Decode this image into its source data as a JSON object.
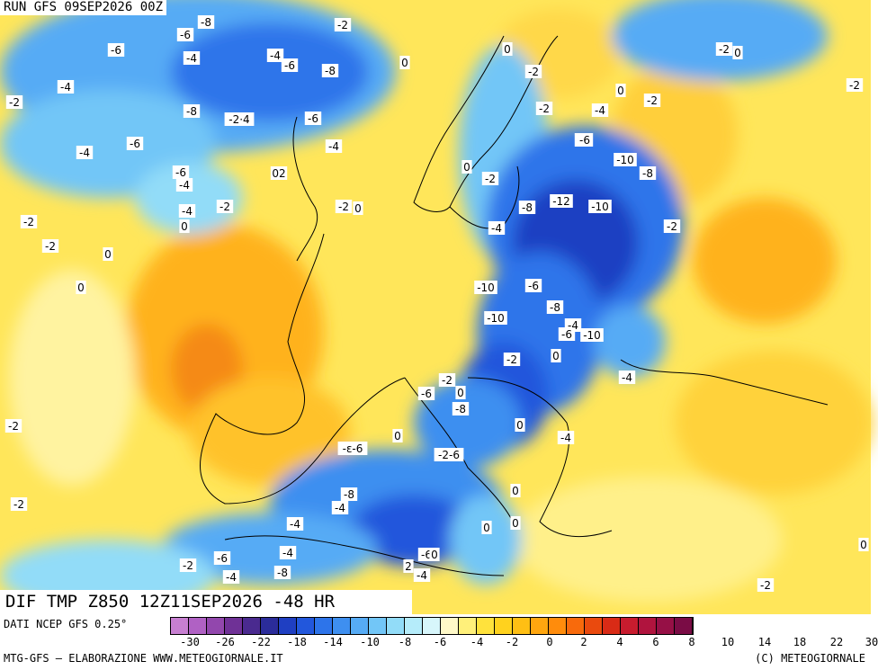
{
  "run_label": "RUN GFS 09SEP2026 00Z",
  "field_label": "DIF TMP Z850 12Z11SEP2026 -48 HR",
  "footer": {
    "source": "DATI NCEP GFS 0.25°",
    "credit": "MTG-GFS – ELABORAZIONE WWW.METEOGIORNALE.IT",
    "copyright": "(C) METEOGIORNALE"
  },
  "colors": {
    "scale": [
      "#c77fd1",
      "#b061c4",
      "#9247ad",
      "#6f3196",
      "#4a2a8f",
      "#2b2c9a",
      "#1f3fc2",
      "#2257dc",
      "#2d74ea",
      "#3e8ff0",
      "#56abf5",
      "#72c6f7",
      "#92dcf8",
      "#b5ecfa",
      "#d7f6fb",
      "#fff9c8",
      "#fff07a",
      "#ffe23c",
      "#ffd21e",
      "#ffbf14",
      "#ffa60f",
      "#ff8c0c",
      "#f86a0c",
      "#ea4a0e",
      "#d92b16",
      "#c81c2e",
      "#b0143e",
      "#961046",
      "#7a0c45"
    ],
    "cold_deep": "#2b4fd8",
    "cold": "#3e8ff0",
    "cool": "#8fd6f7",
    "neutral": "#fff7b0",
    "warm": "#ffd83c",
    "hot": "#ffb21c",
    "coast": "#000000"
  },
  "scale_ticks": [
    "-30",
    "-26",
    "-22",
    "-18",
    "-14",
    "-10",
    "-8",
    "-6",
    "-4",
    "-2",
    "0",
    "2",
    "4",
    "6",
    "8",
    "10",
    "14",
    "18",
    "22",
    "30"
  ],
  "contour_labels": [
    {
      "text": "-8"
    },
    {
      "text": "-6"
    },
    {
      "text": "-6"
    },
    {
      "text": "-4"
    },
    {
      "text": "-4"
    },
    {
      "text": "-6"
    },
    {
      "text": "-8"
    },
    {
      "text": "-4"
    },
    {
      "text": "-2"
    },
    {
      "text": "-8"
    },
    {
      "text": "-2·4"
    },
    {
      "text": "-6"
    },
    {
      "text": "-6"
    },
    {
      "text": "-4"
    },
    {
      "text": "-4"
    },
    {
      "text": "-6"
    },
    {
      "text": "-4"
    },
    {
      "text": "02"
    },
    {
      "text": "-2"
    },
    {
      "text": "0"
    },
    {
      "text": "-2"
    },
    {
      "text": "-2"
    },
    {
      "text": "0"
    },
    {
      "text": "0"
    },
    {
      "text": "0"
    },
    {
      "text": "0"
    },
    {
      "text": "0"
    },
    {
      "text": "-2"
    },
    {
      "text": "0"
    },
    {
      "text": "-6"
    },
    {
      "text": "-2"
    },
    {
      "text": "-4"
    },
    {
      "text": "-2"
    },
    {
      "text": "0"
    },
    {
      "text": "-2"
    },
    {
      "text": "-2"
    },
    {
      "text": "-4"
    },
    {
      "text": "-6"
    },
    {
      "text": "-10"
    },
    {
      "text": "-8"
    },
    {
      "text": "-12"
    },
    {
      "text": "-10"
    },
    {
      "text": "-8"
    },
    {
      "text": "-2"
    },
    {
      "text": "-2"
    },
    {
      "text": "-4"
    },
    {
      "text": "0"
    },
    {
      "text": "-2"
    },
    {
      "text": "-10"
    },
    {
      "text": "-6"
    },
    {
      "text": "-10"
    },
    {
      "text": "-8"
    },
    {
      "text": "-4"
    },
    {
      "text": "-6"
    },
    {
      "text": "-10"
    },
    {
      "text": "-2"
    },
    {
      "text": "0"
    },
    {
      "text": "-4"
    },
    {
      "text": "-2"
    },
    {
      "text": "0"
    },
    {
      "text": "-6"
    },
    {
      "text": "-8"
    },
    {
      "text": "0"
    },
    {
      "text": "-4"
    },
    {
      "text": "0"
    },
    {
      "text": "-ε-6"
    },
    {
      "text": "-2-6"
    },
    {
      "text": "-8"
    },
    {
      "text": "-4"
    },
    {
      "text": "-4"
    },
    {
      "text": "0"
    },
    {
      "text": "-2"
    },
    {
      "text": "-4"
    },
    {
      "text": "0"
    },
    {
      "text": "0"
    },
    {
      "text": "-2"
    },
    {
      "text": "-4"
    },
    {
      "text": "-8"
    },
    {
      "text": "-6"
    },
    {
      "text": "-4"
    },
    {
      "text": "2"
    },
    {
      "text": "0"
    },
    {
      "text": "-2"
    },
    {
      "text": "-6"
    },
    {
      "text": "0"
    },
    {
      "text": "-2"
    },
    {
      "text": "-2"
    }
  ]
}
